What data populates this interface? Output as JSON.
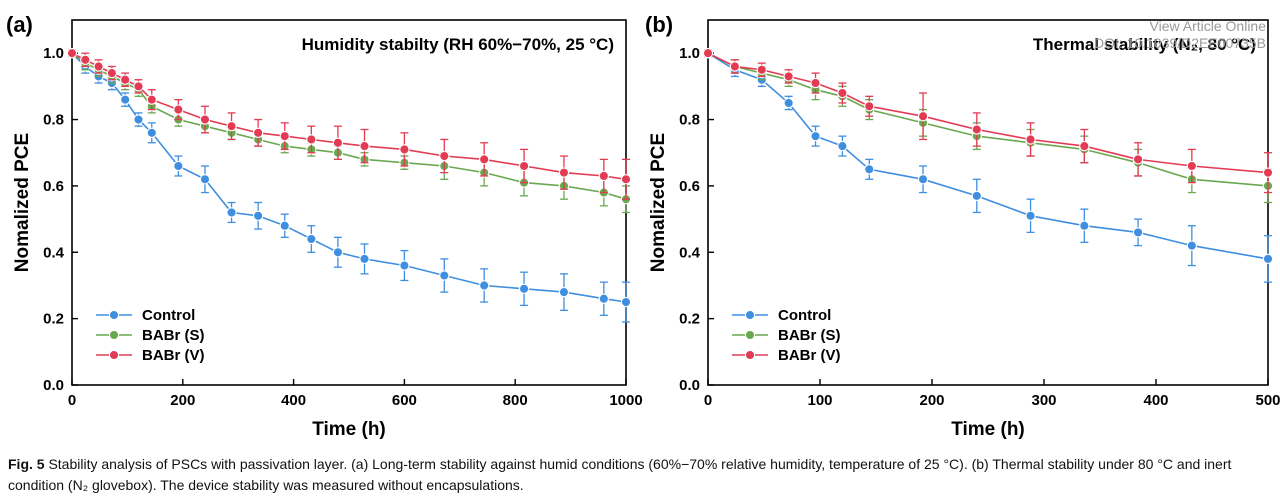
{
  "watermark": {
    "line1": "View Article Online",
    "line2": "DOI: 10.1039/D2EE00735B"
  },
  "caption": {
    "label": "Fig. 5",
    "text": "Stability analysis of PSCs with passivation layer. (a) Long-term stability against humid conditions (60%−70% relative humidity, temperature of 25 °C). (b) Thermal stability under 80 °C and inert condition (N₂ glovebox). The device stability was measured without encapsulations."
  },
  "chart_data": [
    {
      "type": "line",
      "panel_label": "(a)",
      "title": "Humidity stabilty (RH 60%−70%, 25 °C)",
      "xlabel": "Time (h)",
      "ylabel": "Nomalized PCE",
      "xlim": [
        0,
        1000
      ],
      "ylim": [
        0,
        1.1
      ],
      "xticks": [
        0,
        200,
        400,
        600,
        800,
        1000
      ],
      "yticks": [
        0.0,
        0.2,
        0.4,
        0.6,
        0.8,
        1.0
      ],
      "grid": false,
      "legend_position": "bottom-left",
      "series": [
        {
          "name": "Control",
          "color": "#3f8fe0",
          "x": [
            0,
            24,
            48,
            72,
            96,
            120,
            144,
            192,
            240,
            288,
            336,
            384,
            432,
            480,
            528,
            600,
            672,
            744,
            816,
            888,
            960,
            1000
          ],
          "y": [
            1.0,
            0.96,
            0.93,
            0.91,
            0.86,
            0.8,
            0.76,
            0.66,
            0.62,
            0.52,
            0.51,
            0.48,
            0.44,
            0.4,
            0.38,
            0.36,
            0.33,
            0.3,
            0.29,
            0.28,
            0.26,
            0.25
          ],
          "err": [
            0.01,
            0.02,
            0.02,
            0.02,
            0.02,
            0.02,
            0.03,
            0.03,
            0.04,
            0.03,
            0.04,
            0.035,
            0.04,
            0.045,
            0.045,
            0.045,
            0.05,
            0.05,
            0.05,
            0.055,
            0.05,
            0.06
          ]
        },
        {
          "name": "BABr (S)",
          "color": "#6aa84f",
          "x": [
            0,
            24,
            48,
            72,
            96,
            120,
            144,
            192,
            240,
            288,
            336,
            384,
            432,
            480,
            528,
            600,
            672,
            744,
            816,
            888,
            960,
            1000
          ],
          "y": [
            1.0,
            0.97,
            0.95,
            0.93,
            0.91,
            0.89,
            0.84,
            0.8,
            0.78,
            0.76,
            0.74,
            0.72,
            0.71,
            0.7,
            0.68,
            0.67,
            0.66,
            0.64,
            0.61,
            0.6,
            0.58,
            0.56
          ],
          "err": [
            0.01,
            0.02,
            0.02,
            0.02,
            0.02,
            0.02,
            0.02,
            0.02,
            0.02,
            0.02,
            0.02,
            0.02,
            0.02,
            0.02,
            0.02,
            0.02,
            0.04,
            0.04,
            0.04,
            0.04,
            0.04,
            0.04
          ]
        },
        {
          "name": "BABr (V)",
          "color": "#e23b53",
          "x": [
            0,
            24,
            48,
            72,
            96,
            120,
            144,
            192,
            240,
            288,
            336,
            384,
            432,
            480,
            528,
            600,
            672,
            744,
            816,
            888,
            960,
            1000
          ],
          "y": [
            1.0,
            0.98,
            0.96,
            0.94,
            0.92,
            0.9,
            0.86,
            0.83,
            0.8,
            0.78,
            0.76,
            0.75,
            0.74,
            0.73,
            0.72,
            0.71,
            0.69,
            0.68,
            0.66,
            0.64,
            0.63,
            0.62
          ],
          "err": [
            0.01,
            0.02,
            0.02,
            0.02,
            0.02,
            0.02,
            0.03,
            0.03,
            0.04,
            0.04,
            0.04,
            0.04,
            0.04,
            0.05,
            0.05,
            0.05,
            0.05,
            0.05,
            0.05,
            0.05,
            0.05,
            0.06
          ]
        }
      ]
    },
    {
      "type": "line",
      "panel_label": "(b)",
      "title": "Thermal stability (N₂, 80 °C)",
      "xlabel": "Time (h)",
      "ylabel": "Nomalized PCE",
      "xlim": [
        0,
        500
      ],
      "ylim": [
        0,
        1.1
      ],
      "xticks": [
        0,
        100,
        200,
        300,
        400,
        500
      ],
      "yticks": [
        0.0,
        0.2,
        0.4,
        0.6,
        0.8,
        1.0
      ],
      "grid": false,
      "legend_position": "bottom-left",
      "series": [
        {
          "name": "Control",
          "color": "#3f8fe0",
          "x": [
            0,
            24,
            48,
            72,
            96,
            120,
            144,
            192,
            240,
            288,
            336,
            384,
            432,
            500
          ],
          "y": [
            1.0,
            0.95,
            0.92,
            0.85,
            0.75,
            0.72,
            0.65,
            0.62,
            0.57,
            0.51,
            0.48,
            0.46,
            0.42,
            0.38
          ],
          "err": [
            0.01,
            0.02,
            0.02,
            0.02,
            0.03,
            0.03,
            0.03,
            0.04,
            0.05,
            0.05,
            0.05,
            0.04,
            0.06,
            0.07
          ]
        },
        {
          "name": "BABr (S)",
          "color": "#6aa84f",
          "x": [
            0,
            24,
            48,
            72,
            96,
            120,
            144,
            192,
            240,
            288,
            336,
            384,
            432,
            500
          ],
          "y": [
            1.0,
            0.96,
            0.94,
            0.92,
            0.89,
            0.87,
            0.83,
            0.79,
            0.75,
            0.73,
            0.71,
            0.67,
            0.62,
            0.6
          ],
          "err": [
            0.01,
            0.02,
            0.02,
            0.02,
            0.03,
            0.03,
            0.03,
            0.04,
            0.04,
            0.04,
            0.04,
            0.04,
            0.04,
            0.05
          ]
        },
        {
          "name": "BABr (V)",
          "color": "#e23b53",
          "x": [
            0,
            24,
            48,
            72,
            96,
            120,
            144,
            192,
            240,
            288,
            336,
            384,
            432,
            500
          ],
          "y": [
            1.0,
            0.96,
            0.95,
            0.93,
            0.91,
            0.88,
            0.84,
            0.81,
            0.77,
            0.74,
            0.72,
            0.68,
            0.66,
            0.64
          ],
          "err": [
            0.01,
            0.02,
            0.02,
            0.02,
            0.03,
            0.03,
            0.03,
            0.07,
            0.05,
            0.05,
            0.05,
            0.05,
            0.05,
            0.06
          ]
        }
      ]
    }
  ]
}
